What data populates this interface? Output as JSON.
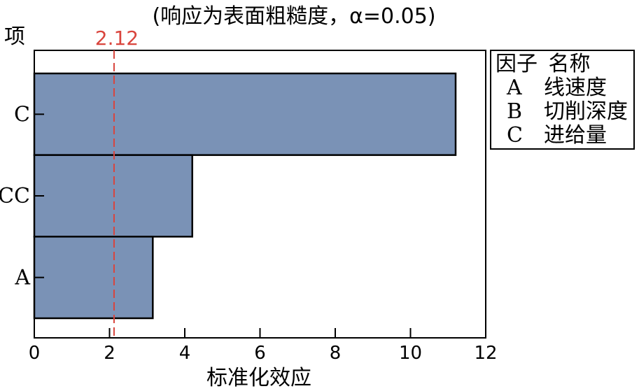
{
  "chart_data": {
    "type": "bar",
    "orientation": "horizontal",
    "title": "(响应为表面粗糙度，α=0.05)",
    "xlabel": "标准化效应",
    "ylabel": "项",
    "categories": [
      "C",
      "CC",
      "A"
    ],
    "values": [
      11.2,
      4.2,
      3.15
    ],
    "xlim": [
      0,
      12
    ],
    "xticks": [
      "0",
      "2",
      "4",
      "6",
      "8",
      "10",
      "12"
    ],
    "reference_line": {
      "value": 2.12,
      "label": "2.12",
      "color": "#d9453d"
    },
    "bar_color": "#7a92b6",
    "grid": false,
    "legend_placement": "right"
  },
  "legend": {
    "header_factor": "因子",
    "header_name": "名称",
    "rows": [
      {
        "code": "A",
        "name": "线速度"
      },
      {
        "code": "B",
        "name": "切削深度"
      },
      {
        "code": "C",
        "name": "进给量"
      }
    ]
  }
}
